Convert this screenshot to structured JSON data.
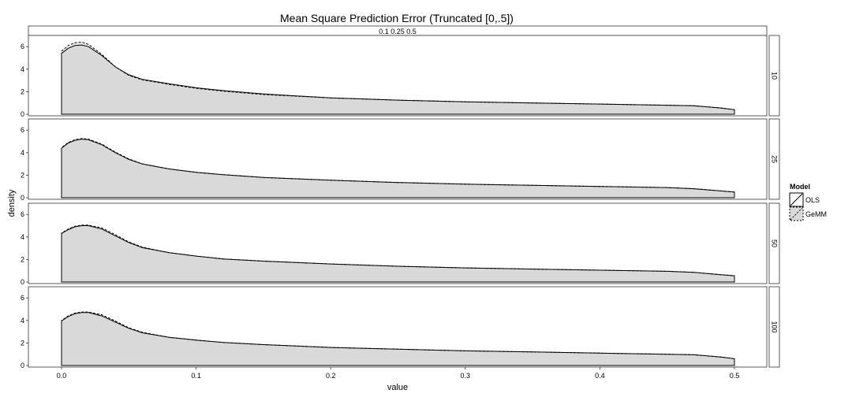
{
  "chart_data": {
    "type": "area",
    "title": "Mean Square Prediction Error (Truncated [0,.5])",
    "xlabel": "value",
    "ylabel": "density",
    "top_strip": "0.1 0.25 0.5",
    "xlim": [
      0,
      0.5
    ],
    "ylim": [
      0,
      6.5
    ],
    "x_ticks": [
      "0.0",
      "0.1",
      "0.2",
      "0.3",
      "0.4",
      "0.5"
    ],
    "y_ticks": [
      "0",
      "2",
      "4",
      "6"
    ],
    "x": [
      0,
      0.005,
      0.01,
      0.015,
      0.02,
      0.03,
      0.04,
      0.05,
      0.06,
      0.08,
      0.1,
      0.12,
      0.15,
      0.2,
      0.25,
      0.3,
      0.35,
      0.4,
      0.45,
      0.47,
      0.49,
      0.5
    ],
    "panels": [
      {
        "label": "10",
        "series": [
          {
            "name": "OLS",
            "values": [
              5.4,
              5.85,
              6.1,
              6.15,
              6.0,
              5.2,
              4.2,
              3.5,
              3.1,
              2.7,
              2.35,
              2.1,
              1.8,
              1.45,
              1.25,
              1.1,
              1.0,
              0.9,
              0.8,
              0.75,
              0.55,
              0.4
            ]
          },
          {
            "name": "GeMM",
            "values": [
              5.6,
              6.1,
              6.35,
              6.4,
              6.2,
              5.3,
              4.2,
              3.45,
              3.05,
              2.65,
              2.3,
              2.05,
              1.75,
              1.45,
              1.25,
              1.1,
              1.0,
              0.9,
              0.8,
              0.75,
              0.55,
              0.4
            ]
          }
        ]
      },
      {
        "label": "25",
        "series": [
          {
            "name": "OLS",
            "values": [
              4.4,
              4.85,
              5.1,
              5.2,
              5.15,
              4.7,
              4.0,
              3.4,
              3.0,
              2.55,
              2.25,
              2.05,
              1.8,
              1.55,
              1.35,
              1.2,
              1.1,
              1.0,
              0.9,
              0.8,
              0.6,
              0.5
            ]
          },
          {
            "name": "GeMM",
            "values": [
              4.45,
              4.9,
              5.15,
              5.25,
              5.2,
              4.75,
              4.05,
              3.45,
              3.0,
              2.55,
              2.25,
              2.05,
              1.8,
              1.55,
              1.35,
              1.2,
              1.1,
              1.0,
              0.9,
              0.8,
              0.6,
              0.5
            ]
          }
        ]
      },
      {
        "label": "50",
        "series": [
          {
            "name": "OLS",
            "values": [
              4.3,
              4.65,
              4.9,
              5.0,
              5.0,
              4.7,
              4.1,
              3.5,
              3.05,
              2.6,
              2.3,
              2.05,
              1.85,
              1.6,
              1.4,
              1.25,
              1.15,
              1.05,
              0.95,
              0.85,
              0.65,
              0.55
            ]
          },
          {
            "name": "GeMM",
            "values": [
              4.35,
              4.7,
              4.95,
              5.05,
              5.05,
              4.8,
              4.2,
              3.55,
              3.1,
              2.6,
              2.3,
              2.05,
              1.85,
              1.6,
              1.4,
              1.25,
              1.15,
              1.05,
              0.95,
              0.85,
              0.65,
              0.55
            ]
          }
        ]
      },
      {
        "label": "100",
        "series": [
          {
            "name": "OLS",
            "values": [
              3.95,
              4.35,
              4.6,
              4.7,
              4.7,
              4.4,
              3.85,
              3.3,
              2.9,
              2.5,
              2.25,
              2.05,
              1.85,
              1.6,
              1.45,
              1.3,
              1.2,
              1.1,
              1.0,
              0.95,
              0.75,
              0.6
            ]
          },
          {
            "name": "GeMM",
            "values": [
              4.0,
              4.4,
              4.65,
              4.75,
              4.75,
              4.5,
              3.95,
              3.35,
              2.95,
              2.5,
              2.25,
              2.05,
              1.85,
              1.6,
              1.45,
              1.3,
              1.2,
              1.1,
              1.0,
              0.95,
              0.75,
              0.6
            ]
          }
        ]
      }
    ],
    "legend": {
      "title": "Model",
      "entries": [
        {
          "name": "OLS",
          "linetype": "solid"
        },
        {
          "name": "GeMM",
          "linetype": "dashed"
        }
      ],
      "placement": "right"
    },
    "grid": false,
    "colors": {
      "fill": "#d9d9d9",
      "line": "#000000",
      "strip_bg": "#ffffff",
      "panel_border": "#333333"
    }
  }
}
